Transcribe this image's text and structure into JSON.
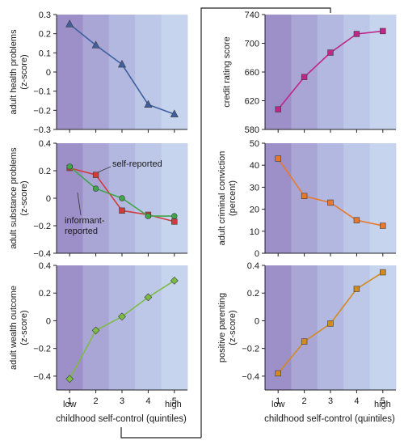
{
  "figure": {
    "x_title": "childhood self-control (quintiles)",
    "low_label": "low",
    "high_label": "high"
  },
  "colors": {
    "band_fills": [
      "#9d8fc8",
      "#a9a6d6",
      "#b3b8e0",
      "#bdc8e8",
      "#c6d4ed"
    ],
    "axis": "#222222",
    "connector": "#222222"
  },
  "chart_data": [
    {
      "id": "health",
      "type": "line",
      "ylabel": "adult health problems\n(z-score)",
      "x": [
        1,
        2,
        3,
        4,
        5
      ],
      "xticks": [
        "1",
        "2",
        "3",
        "4",
        "5"
      ],
      "ylim": [
        -0.3,
        0.3
      ],
      "yticks": [
        -0.3,
        -0.2,
        -0.1,
        0,
        0.1,
        0.2,
        0.3
      ],
      "yticklabels": [
        "−0.3",
        "−0.2",
        "−0.1",
        "0",
        "0.1",
        "0.2",
        "0.3"
      ],
      "series": [
        {
          "values": [
            0.25,
            0.14,
            0.04,
            -0.17,
            -0.22
          ],
          "color": "#3f5f9e",
          "marker": "triangle"
        }
      ]
    },
    {
      "id": "credit",
      "type": "line",
      "ylabel": "credit rating score",
      "x": [
        1,
        2,
        3,
        4,
        5
      ],
      "xticks": [
        "1",
        "2",
        "3",
        "4",
        "5"
      ],
      "ylim": [
        580,
        740
      ],
      "yticks": [
        580,
        620,
        660,
        700,
        740
      ],
      "yticklabels": [
        "580",
        "620",
        "660",
        "700",
        "740"
      ],
      "series": [
        {
          "values": [
            608,
            653,
            687,
            713,
            717
          ],
          "color": "#c0268a",
          "marker": "square"
        }
      ]
    },
    {
      "id": "substance",
      "type": "line",
      "ylabel": "adult substance problems\n(z-score)",
      "x": [
        1,
        2,
        3,
        4,
        5
      ],
      "xticks": [
        "1",
        "2",
        "3",
        "4",
        "5"
      ],
      "ylim": [
        -0.4,
        0.4
      ],
      "yticks": [
        -0.4,
        -0.2,
        0,
        0.2,
        0.4
      ],
      "yticklabels": [
        "−0.4",
        "−0.2",
        "0",
        "0.2",
        "0.4"
      ],
      "series": [
        {
          "name": "self-reported",
          "values": [
            0.22,
            0.17,
            -0.09,
            -0.12,
            -0.17
          ],
          "color": "#d23b3b",
          "marker": "square"
        },
        {
          "name": "informant-reported",
          "values": [
            0.23,
            0.07,
            0.0,
            -0.13,
            -0.13
          ],
          "color": "#3fa64a",
          "marker": "circle"
        }
      ],
      "annotations": [
        {
          "lines": [
            "self-reported"
          ]
        },
        {
          "lines": [
            "informant-",
            "reported"
          ]
        }
      ]
    },
    {
      "id": "criminal",
      "type": "line",
      "ylabel": "adult criminal conviction\n(percent)",
      "x": [
        1,
        2,
        3,
        4,
        5
      ],
      "xticks": [
        "1",
        "2",
        "3",
        "4",
        "5"
      ],
      "ylim": [
        0,
        50
      ],
      "yticks": [
        0,
        10,
        20,
        30,
        40,
        50
      ],
      "yticklabels": [
        "0",
        "10",
        "20",
        "30",
        "40",
        "50"
      ],
      "series": [
        {
          "values": [
            43,
            26,
            23,
            15,
            12.5
          ],
          "color": "#e8792a",
          "marker": "square"
        }
      ]
    },
    {
      "id": "wealth",
      "type": "line",
      "ylabel": "adult wealth outcome\n(z-score)",
      "x": [
        1,
        2,
        3,
        4,
        5
      ],
      "xticks": [
        "1",
        "2",
        "3",
        "4",
        "5"
      ],
      "ylim": [
        -0.5,
        0.4
      ],
      "yticks": [
        -0.4,
        -0.2,
        0,
        0.2,
        0.4
      ],
      "yticklabels": [
        "−0.4",
        "−0.2",
        "0",
        "0.2",
        "0.4"
      ],
      "series": [
        {
          "values": [
            -0.42,
            -0.07,
            0.03,
            0.17,
            0.29
          ],
          "color": "#7dbb45",
          "marker": "diamond"
        }
      ]
    },
    {
      "id": "parenting",
      "type": "line",
      "ylabel": "positive parenting\n(z-score)",
      "x": [
        1,
        2,
        3,
        4,
        5
      ],
      "xticks": [
        "1",
        "2",
        "3",
        "4",
        "5"
      ],
      "ylim": [
        -0.5,
        0.4
      ],
      "yticks": [
        -0.4,
        -0.2,
        0,
        0.2,
        0.4
      ],
      "yticklabels": [
        "−0.4",
        "−0.2",
        "0",
        "0.2",
        "0.4"
      ],
      "series": [
        {
          "values": [
            -0.38,
            -0.15,
            -0.02,
            0.23,
            0.35
          ],
          "color": "#d38a1f",
          "marker": "square"
        }
      ]
    }
  ]
}
